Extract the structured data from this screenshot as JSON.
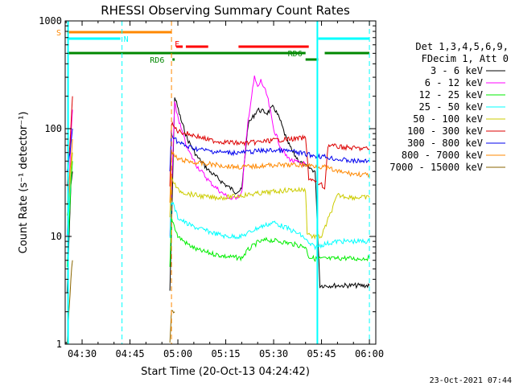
{
  "chart_data": {
    "type": "line",
    "title": "RHESSI Observing Summary Count Rates",
    "xlabel": "Start Time (20-Oct-13 04:24:42)",
    "ylabel": "Count Rate (s⁻¹ detector⁻¹)",
    "yscale": "log",
    "ylim": [
      1,
      1000
    ],
    "xlim": [
      24.7,
      122
    ],
    "x_units": "minutes after 04:00 UT",
    "x_ticks": [
      {
        "value": 30,
        "label": "04:30"
      },
      {
        "value": 45,
        "label": "04:45"
      },
      {
        "value": 60,
        "label": "05:00"
      },
      {
        "value": 75,
        "label": "05:15"
      },
      {
        "value": 90,
        "label": "05:30"
      },
      {
        "value": 105,
        "label": "05:45"
      },
      {
        "value": 120,
        "label": "06:00"
      }
    ],
    "y_ticks": [
      {
        "value": 1,
        "label": "1"
      },
      {
        "value": 10,
        "label": "10"
      },
      {
        "value": 100,
        "label": "100"
      },
      {
        "value": 1000,
        "label": "1000"
      }
    ],
    "legend_header": [
      "Det 1,3,4,5,6,9,",
      "FDecim 1, Att 0"
    ],
    "series": [
      {
        "name": "3 - 6 keV",
        "color": "#000000",
        "x": [
          25.3,
          26.5,
          27,
          57.5,
          59,
          61,
          63,
          66,
          70,
          75,
          78,
          80,
          82,
          85,
          88,
          90,
          92,
          94,
          96,
          98,
          100,
          102,
          103,
          104.5,
          106,
          110,
          115,
          118,
          120
        ],
        "y": [
          3,
          30,
          40,
          3,
          200,
          120,
          80,
          55,
          40,
          30,
          26,
          27,
          110,
          150,
          140,
          160,
          120,
          80,
          60,
          50,
          45,
          42,
          40,
          3.5,
          3.5,
          3.5,
          3.5,
          3.5,
          3.5
        ]
      },
      {
        "name": "6 - 12 keV",
        "color": "#ff00ff",
        "x": [
          25.3,
          26.5,
          27,
          57.5,
          59,
          61,
          63,
          66,
          70,
          74,
          77,
          80,
          82,
          84,
          85,
          86,
          88,
          90,
          92,
          94,
          96,
          98,
          100
        ],
        "y": [
          10,
          80,
          150,
          10,
          170,
          100,
          65,
          45,
          32,
          25,
          22,
          25,
          120,
          300,
          240,
          280,
          200,
          100,
          70,
          55,
          50,
          48,
          47
        ]
      },
      {
        "name": "12 - 25 keV",
        "color": "#00ee00",
        "x": [
          25.3,
          26.5,
          27,
          57.5,
          58,
          60,
          63,
          66,
          70,
          75,
          80,
          82,
          85,
          88,
          92,
          96,
          100,
          101,
          103,
          105,
          108,
          112,
          116,
          120
        ],
        "y": [
          5,
          30,
          50,
          5,
          15,
          10,
          8.5,
          7.5,
          7,
          6.5,
          6.3,
          7.5,
          8.8,
          9.3,
          9,
          8.5,
          8,
          6.5,
          6.2,
          6.2,
          6.2,
          6.3,
          6.2,
          6.3
        ]
      },
      {
        "name": "25 - 50 keV",
        "color": "#00ffff",
        "x": [
          25.3,
          26.5,
          27,
          57.5,
          58,
          60,
          63,
          66,
          70,
          75,
          80,
          85,
          90,
          94,
          98,
          100,
          101,
          103,
          106,
          110,
          115,
          120
        ],
        "y": [
          10,
          40,
          60,
          10,
          22,
          15,
          13,
          12,
          11,
          10,
          10,
          12,
          13.5,
          12,
          10.5,
          9.5,
          8.5,
          8,
          8.5,
          9,
          9,
          9
        ]
      },
      {
        "name": "50 - 100 keV",
        "color": "#cccc00",
        "x": [
          25.3,
          26.5,
          27,
          57.5,
          58,
          60,
          63,
          66,
          70,
          75,
          80,
          85,
          90,
          95,
          100,
          100.5,
          102,
          105,
          110,
          115,
          120
        ],
        "y": [
          15,
          40,
          60,
          15,
          35,
          27,
          25,
          24,
          23,
          23,
          24,
          25,
          26,
          27,
          27,
          11,
          10,
          10,
          24,
          23,
          23
        ]
      },
      {
        "name": "100 - 300 keV",
        "color": "#dd0000",
        "x": [
          25.3,
          26.5,
          27,
          57.5,
          58,
          60,
          63,
          66,
          70,
          75,
          80,
          85,
          90,
          95,
          100,
          101,
          103,
          105,
          106,
          107,
          110,
          115,
          120
        ],
        "y": [
          30,
          100,
          200,
          30,
          110,
          95,
          90,
          85,
          78,
          75,
          73,
          75,
          78,
          80,
          82,
          35,
          32,
          30,
          28,
          70,
          68,
          66,
          65
        ]
      },
      {
        "name": "300 - 800 keV",
        "color": "#0000ee",
        "x": [
          25.3,
          26.5,
          27,
          57.5,
          58,
          60,
          63,
          66,
          70,
          75,
          80,
          85,
          90,
          95,
          100,
          103,
          106,
          110,
          115,
          120
        ],
        "y": [
          40,
          70,
          100,
          40,
          90,
          75,
          68,
          65,
          62,
          60,
          60,
          62,
          63,
          62,
          58,
          56,
          55,
          52,
          50,
          50
        ]
      },
      {
        "name": "800 - 7000 keV",
        "color": "#ff8800",
        "x": [
          25.3,
          26.5,
          27,
          57.5,
          58,
          60,
          63,
          66,
          70,
          75,
          80,
          85,
          90,
          95,
          100,
          103,
          106,
          110,
          115,
          120
        ],
        "y": [
          20,
          50,
          80,
          20,
          60,
          52,
          50,
          48,
          47,
          45,
          44,
          45,
          46,
          46,
          46,
          45,
          44,
          40,
          38,
          37
        ]
      },
      {
        "name": "7000 - 15000 keV",
        "color": "#886600",
        "x": [
          25.3,
          26.5,
          27,
          57.5,
          58,
          59
        ],
        "y": [
          1,
          4,
          6,
          1,
          2,
          2
        ]
      }
    ],
    "vertical_lines": [
      {
        "x": 25.6,
        "color": "#00ffff",
        "style": "solid"
      },
      {
        "x": 42.5,
        "color": "#00ffff",
        "style": "dashed"
      },
      {
        "x": 58,
        "color": "#ff8800",
        "style": "dashed"
      },
      {
        "x": 103.7,
        "color": "#00ffff",
        "style": "solid"
      },
      {
        "x": 120,
        "color": "#00ffff",
        "style": "dashed"
      }
    ],
    "flag_bars": [
      {
        "label": "S",
        "color": "#ff8800",
        "x_start": 25.3,
        "x_end": 58
      },
      {
        "label": "N",
        "color": "#00ffff",
        "x_start": 25.3,
        "x_end": 42
      },
      {
        "label": "",
        "color": "#00ffff",
        "x_start": 104,
        "x_end": 120
      },
      {
        "label": "F",
        "color": "#ff0000",
        "x_start": 59.5,
        "x_end": 61.5
      },
      {
        "label": "",
        "color": "#ff0000",
        "x_start": 62.5,
        "x_end": 69.5
      },
      {
        "label": "",
        "color": "#ff0000",
        "x_start": 79,
        "x_end": 101
      },
      {
        "label": "",
        "color": "#008800",
        "x_start": 25.3,
        "x_end": 100
      },
      {
        "label": "",
        "color": "#008800",
        "x_start": 106,
        "x_end": 120
      },
      {
        "label": "RD6",
        "color": "#008800",
        "x_start": 100,
        "x_end": 104
      },
      {
        "label": "RD6",
        "color": "#008800",
        "x_start": 58.3,
        "x_end": 59
      }
    ],
    "timestamp": "23-Oct-2021 07:44"
  }
}
